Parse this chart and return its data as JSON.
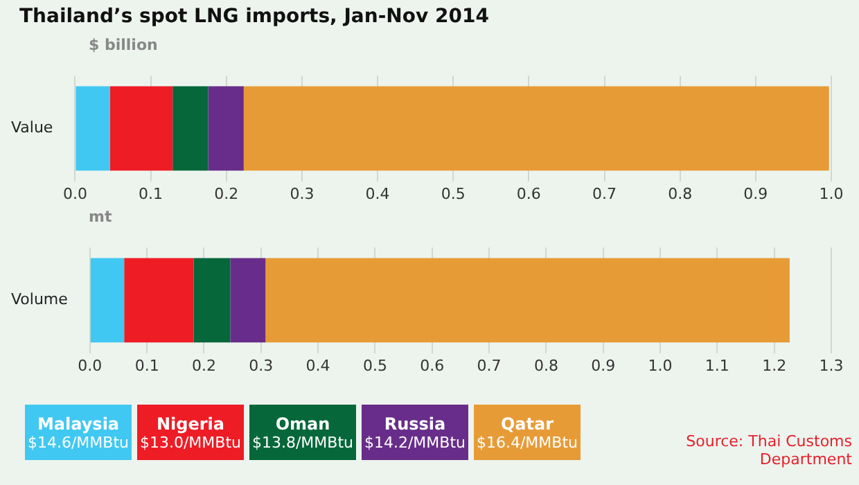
{
  "chart_data": [
    {
      "type": "bar",
      "title": "Thailand’s spot LNG imports, Jan-Nov 2014",
      "xlabel": "$ billion",
      "orientation": "horizontal",
      "stacked": true,
      "grid": "x",
      "legend": "bottom",
      "categories": [
        "Value"
      ],
      "xlim": [
        0,
        1.0
      ],
      "xticks": [
        "0.0",
        0.1,
        0.2,
        0.3,
        0.4,
        0.5,
        0.6,
        0.7,
        0.8,
        0.9,
        "1.0"
      ],
      "series": [
        {
          "name": "Malaysia\n$14.6/MMBtu",
          "color": "#41c8f2",
          "values": [
            0.046
          ]
        },
        {
          "name": "Nigeria\n$13.0/MMBtu",
          "color": "#ee1c25",
          "values": [
            0.083
          ]
        },
        {
          "name": "Oman\n$13.8/MMBtu",
          "color": "#06673a",
          "values": [
            0.047
          ]
        },
        {
          "name": "Russia\n$14.2/MMBtu",
          "color": "#682d8a",
          "values": [
            0.047
          ]
        },
        {
          "name": "Qatar\n$16.4/MMBtu",
          "color": "#e79b37",
          "values": [
            0.774
          ]
        }
      ]
    },
    {
      "type": "bar",
      "xlabel": "mt",
      "orientation": "horizontal",
      "stacked": true,
      "grid": "x",
      "categories": [
        "Volume"
      ],
      "xlim": [
        0,
        1.3
      ],
      "xticks": [
        "0.0",
        0.1,
        0.2,
        0.3,
        0.4,
        0.5,
        0.6,
        0.7,
        0.8,
        0.9,
        "1.0",
        1.1,
        1.2,
        1.3
      ],
      "annotations": [
        "Source: Thai Customs Department"
      ],
      "series": [
        {
          "color": "#41c8f2",
          "values": [
            0.06
          ]
        },
        {
          "color": "#ee1c25",
          "values": [
            0.122
          ]
        },
        {
          "color": "#06673a",
          "values": [
            0.064
          ]
        },
        {
          "color": "#682d8a",
          "values": [
            0.062
          ]
        },
        {
          "color": "#e79b37",
          "values": [
            0.919
          ]
        }
      ]
    }
  ]
}
